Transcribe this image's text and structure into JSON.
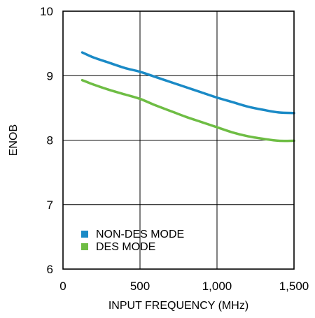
{
  "chart_data": {
    "type": "line",
    "title": "",
    "xlabel": "INPUT FREQUENCY (MHz)",
    "ylabel": "ENOB",
    "xlim": [
      0,
      1500
    ],
    "ylim": [
      6,
      10
    ],
    "x_ticks": [
      0,
      500,
      1000,
      1500
    ],
    "x_tick_labels": [
      "0",
      "500",
      "1,000",
      "1,500"
    ],
    "y_ticks": [
      6,
      7,
      8,
      9,
      10
    ],
    "y_tick_labels": [
      "6",
      "7",
      "8",
      "9",
      "10"
    ],
    "grid": true,
    "legend_position": "bottom-left",
    "series": [
      {
        "name": "NON-DES MODE",
        "color": "#1a8ac6",
        "x": [
          125,
          200,
          300,
          400,
          500,
          600,
          700,
          800,
          900,
          1000,
          1100,
          1200,
          1300,
          1400,
          1500
        ],
        "y": [
          9.36,
          9.28,
          9.2,
          9.12,
          9.06,
          8.98,
          8.9,
          8.82,
          8.74,
          8.66,
          8.59,
          8.52,
          8.47,
          8.43,
          8.42
        ]
      },
      {
        "name": "DES MODE",
        "color": "#6ebd44",
        "x": [
          125,
          200,
          300,
          400,
          500,
          600,
          700,
          800,
          900,
          1000,
          1100,
          1200,
          1300,
          1400,
          1500
        ],
        "y": [
          8.93,
          8.86,
          8.78,
          8.71,
          8.64,
          8.54,
          8.45,
          8.36,
          8.28,
          8.2,
          8.12,
          8.06,
          8.02,
          7.99,
          7.99
        ]
      }
    ]
  }
}
